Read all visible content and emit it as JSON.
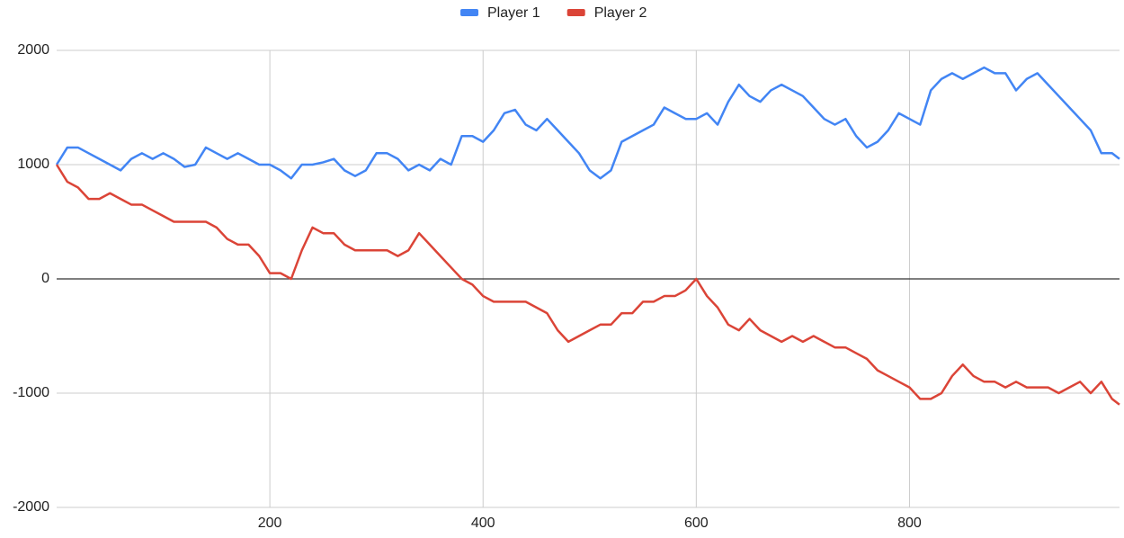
{
  "chart_data": {
    "type": "line",
    "x": [
      0,
      10,
      20,
      30,
      40,
      50,
      60,
      70,
      80,
      90,
      100,
      110,
      120,
      130,
      140,
      150,
      160,
      170,
      180,
      190,
      200,
      210,
      220,
      230,
      240,
      250,
      260,
      270,
      280,
      290,
      300,
      310,
      320,
      330,
      340,
      350,
      360,
      370,
      380,
      390,
      400,
      410,
      420,
      430,
      440,
      450,
      460,
      470,
      480,
      490,
      500,
      510,
      520,
      530,
      540,
      550,
      560,
      570,
      580,
      590,
      600,
      610,
      620,
      630,
      640,
      650,
      660,
      670,
      680,
      690,
      700,
      710,
      720,
      730,
      740,
      750,
      760,
      770,
      780,
      790,
      800,
      810,
      820,
      830,
      840,
      850,
      860,
      870,
      880,
      890,
      900,
      910,
      920,
      930,
      940,
      950,
      960,
      970,
      980,
      990,
      997
    ],
    "series": [
      {
        "name": "Player 1",
        "color": "#4285f4",
        "values": [
          1000,
          1150,
          1150,
          1100,
          1050,
          1000,
          950,
          1050,
          1100,
          1050,
          1100,
          1050,
          980,
          1000,
          1150,
          1100,
          1050,
          1100,
          1050,
          1000,
          1000,
          950,
          880,
          1000,
          1000,
          1020,
          1050,
          950,
          900,
          950,
          1100,
          1100,
          1050,
          950,
          1000,
          950,
          1050,
          1000,
          1250,
          1250,
          1200,
          1300,
          1450,
          1480,
          1350,
          1300,
          1400,
          1300,
          1200,
          1100,
          950,
          880,
          950,
          1200,
          1250,
          1300,
          1350,
          1500,
          1450,
          1400,
          1400,
          1450,
          1350,
          1550,
          1700,
          1600,
          1550,
          1650,
          1700,
          1650,
          1600,
          1500,
          1400,
          1350,
          1400,
          1250,
          1150,
          1200,
          1300,
          1450,
          1400,
          1350,
          1650,
          1750,
          1800,
          1750,
          1800,
          1850,
          1800,
          1800,
          1650,
          1750,
          1800,
          1700,
          1600,
          1500,
          1400,
          1300,
          1100,
          1100,
          1050
        ]
      },
      {
        "name": "Player 2",
        "color": "#db4437",
        "values": [
          1000,
          850,
          800,
          700,
          700,
          750,
          700,
          650,
          650,
          600,
          550,
          500,
          500,
          500,
          500,
          450,
          350,
          300,
          300,
          200,
          50,
          50,
          0,
          250,
          450,
          400,
          400,
          300,
          250,
          250,
          250,
          250,
          200,
          250,
          400,
          300,
          200,
          100,
          0,
          -50,
          -150,
          -200,
          -200,
          -200,
          -200,
          -250,
          -300,
          -450,
          -550,
          -500,
          -450,
          -400,
          -400,
          -300,
          -300,
          -200,
          -200,
          -150,
          -150,
          -100,
          0,
          -150,
          -250,
          -400,
          -450,
          -350,
          -450,
          -500,
          -550,
          -500,
          -550,
          -500,
          -550,
          -600,
          -600,
          -650,
          -700,
          -800,
          -850,
          -900,
          -950,
          -1050,
          -1050,
          -1000,
          -850,
          -750,
          -850,
          -900,
          -900,
          -950,
          -900,
          -950,
          -950,
          -950,
          -1000,
          -950,
          -900,
          -1000,
          -900,
          -1050,
          -1100
        ]
      }
    ],
    "xlim": [
      0,
      997
    ],
    "xticks": [
      200,
      400,
      600,
      800
    ],
    "ylim": [
      -2000,
      2000
    ],
    "yticks": [
      -2000,
      -1000,
      0,
      1000,
      2000
    ],
    "grid": true,
    "legend": "top"
  }
}
